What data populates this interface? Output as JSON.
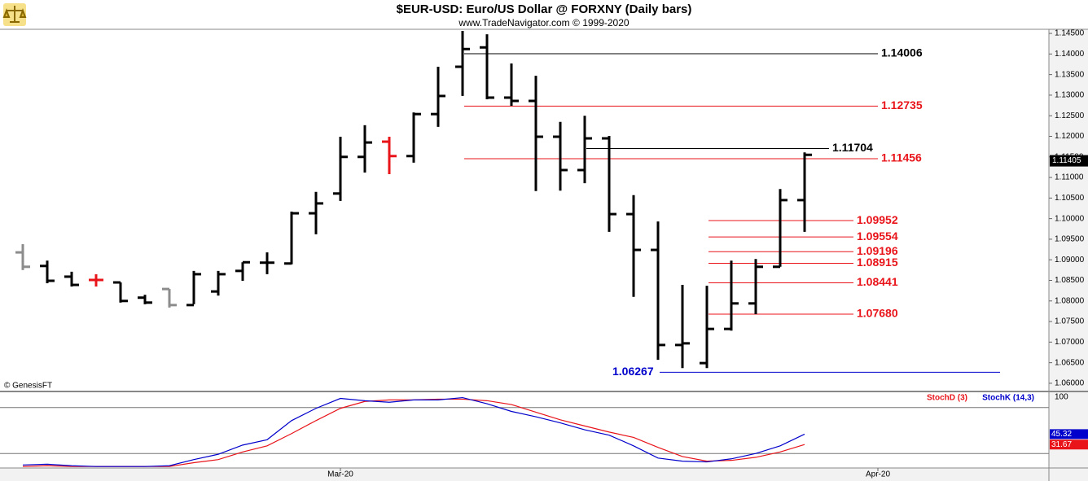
{
  "chart_data": [
    {
      "type": "ohlc",
      "title": "$EUR-USD:  Euro/US Dollar @ FORXNY  (Daily bars)",
      "subtitle": "www.TradeNavigator.com © 1999-2020",
      "source": "© GenesisFT",
      "open": [
        1.0918,
        1.0885,
        1.0859,
        1.0851,
        1.0845,
        1.0808,
        1.0829,
        1.079,
        1.0823,
        1.0873,
        1.0893,
        1.0891,
        1.1013,
        1.1061,
        1.115,
        1.1187,
        1.1152,
        1.1254,
        1.1369,
        1.1416,
        1.1294,
        1.1286,
        1.1199,
        1.1118,
        1.1195,
        1.1011,
        1.0924,
        1.0693,
        1.0649,
        1.0732,
        1.0794,
        1.0883,
        1.1045
      ],
      "high": [
        1.0938,
        1.0898,
        1.0871,
        1.0865,
        1.0845,
        1.0815,
        1.0829,
        1.0873,
        1.0873,
        1.0894,
        1.0918,
        1.1017,
        1.1065,
        1.1199,
        1.1227,
        1.1199,
        1.1258,
        1.1369,
        1.1456,
        1.1448,
        1.1377,
        1.1347,
        1.1235,
        1.125,
        1.1201,
        1.1057,
        1.0993,
        1.0839,
        1.0837,
        1.0898,
        1.0902,
        1.1072,
        1.1161
      ],
      "low": [
        1.0875,
        1.0843,
        1.0835,
        1.0835,
        1.0796,
        1.0792,
        1.0784,
        1.0792,
        1.0813,
        1.0849,
        1.0865,
        1.0889,
        1.0962,
        1.1043,
        1.1112,
        1.1108,
        1.1136,
        1.1223,
        1.1298,
        1.129,
        1.1274,
        1.1067,
        1.1068,
        1.1086,
        1.0968,
        1.081,
        1.0657,
        1.0637,
        1.0637,
        1.0728,
        1.0768,
        1.0883,
        1.0968
      ],
      "close": [
        1.0883,
        1.0849,
        1.0839,
        1.0851,
        1.08,
        1.0796,
        1.079,
        1.0865,
        1.0865,
        1.0894,
        1.0893,
        1.1013,
        1.1037,
        1.115,
        1.1185,
        1.1152,
        1.1254,
        1.1298,
        1.1412,
        1.1294,
        1.1286,
        1.1199,
        1.1118,
        1.1195,
        1.1011,
        1.0924,
        1.0693,
        1.0697,
        1.0732,
        1.0794,
        1.0883,
        1.1045,
        1.1155
      ],
      "bar_colors": [
        "#8c8c8c",
        "#000000",
        "#000000",
        "#e8141a",
        "#000000",
        "#000000",
        "#8c8c8c",
        "#000000",
        "#000000",
        "#000000",
        "#000000",
        "#000000",
        "#000000",
        "#000000",
        "#000000",
        "#e8141a",
        "#000000",
        "#000000",
        "#000000",
        "#000000",
        "#000000",
        "#000000",
        "#000000",
        "#000000",
        "#000000",
        "#000000",
        "#000000",
        "#000000",
        "#000000",
        "#000000",
        "#000000",
        "#000000",
        "#000000"
      ],
      "levels": [
        {
          "value": 1.14006,
          "color": "#000000"
        },
        {
          "value": 1.12735,
          "color": "#e8141a"
        },
        {
          "value": 1.11704,
          "color": "#000000"
        },
        {
          "value": 1.11456,
          "color": "#e8141a"
        },
        {
          "value": 1.09952,
          "color": "#e8141a"
        },
        {
          "value": 1.09554,
          "color": "#e8141a"
        },
        {
          "value": 1.09196,
          "color": "#e8141a"
        },
        {
          "value": 1.08915,
          "color": "#e8141a"
        },
        {
          "value": 1.08441,
          "color": "#e8141a"
        },
        {
          "value": 1.0768,
          "label": "1.07680",
          "color": "#e8141a"
        },
        {
          "value": 1.06267,
          "color": "#0000cc"
        }
      ],
      "last_price": 1.11405,
      "ylim": [
        1.0586,
        1.146
      ],
      "yticks": [
        {
          "value": 1.06,
          "label": "1.06000"
        },
        {
          "value": 1.065,
          "label": "1.06500"
        },
        {
          "value": 1.07,
          "label": "1.07000"
        },
        {
          "value": 1.075,
          "label": "1.07500"
        },
        {
          "value": 1.08,
          "label": "1.08000"
        },
        {
          "value": 1.085,
          "label": "1.08500"
        },
        {
          "value": 1.09,
          "label": "1.09000"
        },
        {
          "value": 1.095,
          "label": "1.09500"
        },
        {
          "value": 1.1,
          "label": "1.10000"
        },
        {
          "value": 1.105,
          "label": "1.10500"
        },
        {
          "value": 1.11,
          "label": "1.11000"
        },
        {
          "value": 1.115,
          "label": "1.11500"
        },
        {
          "value": 1.12,
          "label": "1.12000"
        },
        {
          "value": 1.125,
          "label": "1.12500"
        },
        {
          "value": 1.13,
          "label": "1.13000"
        },
        {
          "value": 1.135,
          "label": "1.13500"
        },
        {
          "value": 1.14,
          "label": "1.14000"
        },
        {
          "value": 1.145,
          "label": "1.14500"
        }
      ],
      "xticks": [
        {
          "value": 13,
          "label": "Mar-20"
        },
        {
          "value": 35,
          "label": "Apr-20"
        }
      ]
    },
    {
      "type": "line",
      "series": [
        {
          "name": "StochD (3)",
          "color": "#e8141a",
          "values": [
            3,
            4,
            3,
            3,
            3,
            3,
            3,
            8,
            12,
            22,
            30,
            46,
            63,
            79,
            88,
            90,
            90,
            91,
            91,
            89,
            84,
            74,
            64,
            56,
            48,
            41,
            28,
            16,
            10,
            11,
            15,
            22,
            31.67
          ]
        },
        {
          "name": "StochK (14,3)",
          "color": "#0000cc",
          "values": [
            5,
            6,
            4,
            3,
            3,
            3,
            4,
            12,
            19,
            31,
            38,
            63,
            79,
            92,
            89,
            87,
            90,
            90,
            93,
            85,
            75,
            68,
            60,
            51,
            44,
            30,
            14,
            10,
            9,
            13,
            20,
            30,
            45.32
          ]
        }
      ],
      "ylim": [
        0,
        100
      ],
      "yticks": [
        100
      ],
      "levels": [
        80,
        20
      ]
    }
  ]
}
